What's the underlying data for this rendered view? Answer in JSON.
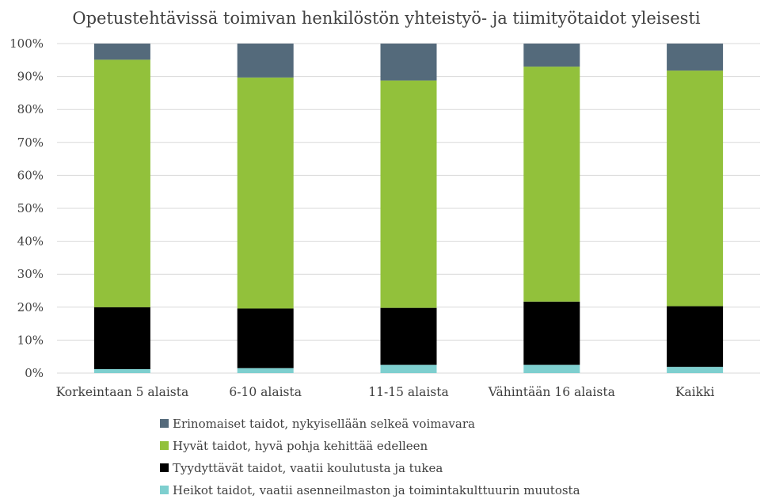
{
  "chart_data": {
    "type": "bar",
    "stacked": true,
    "percent_stacked": true,
    "title": "Opetustehtävissä toimivan henkilöstön yhteistyö- ja tiimityötaidot yleisesti",
    "categories": [
      "Korkeintaan 5 alaista",
      "6-10 alaista",
      "11-15 alaista",
      "Vähintään 16 alaista",
      "Kaikki"
    ],
    "yticks": [
      "0%",
      "10%",
      "20%",
      "30%",
      "40%",
      "50%",
      "60%",
      "70%",
      "80%",
      "90%",
      "100%"
    ],
    "ylim": [
      0,
      100
    ],
    "grid": true,
    "legend_position": "bottom",
    "series": [
      {
        "name": "Heikot taidot, vaatii asenneilmaston ja toimintakulttuurin muutosta",
        "color": "#7ecfcf",
        "values": [
          1.2,
          1.5,
          2.5,
          2.5,
          1.9
        ]
      },
      {
        "name": "Tyydyttävät taidot, vaatii koulutusta ja tukea",
        "color": "#000000",
        "values": [
          18.8,
          18.1,
          17.3,
          19.2,
          18.4
        ]
      },
      {
        "name": "Hyvät taidot, hyvä pohja kehittää edelleen",
        "color": "#92c13b",
        "values": [
          75.1,
          70.1,
          69.0,
          71.3,
          71.5
        ]
      },
      {
        "name": "Erinomaiset taidot, nykyisellään selkeä voimavara",
        "color": "#546a7b",
        "values": [
          4.9,
          10.3,
          11.2,
          7.0,
          8.2
        ]
      }
    ],
    "legend_order": [
      3,
      2,
      1,
      0
    ]
  }
}
